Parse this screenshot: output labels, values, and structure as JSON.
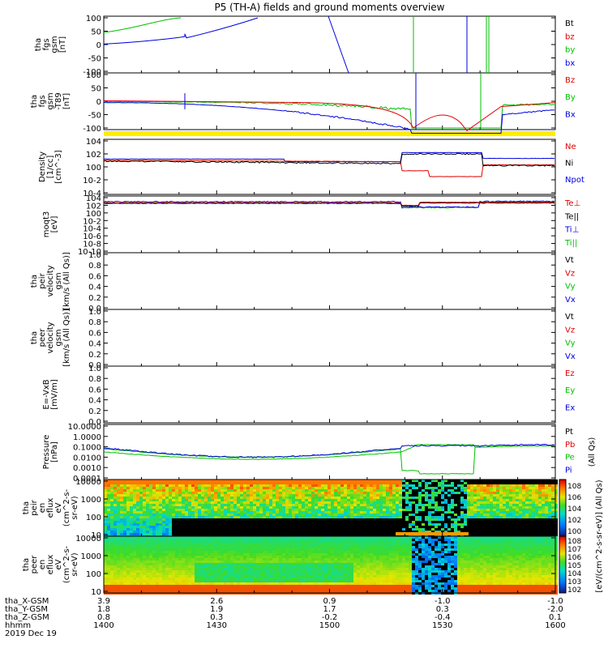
{
  "title": "P5 (TH-A) fields and ground moments overview",
  "panels": [
    {
      "id": "fgs_gsm",
      "ylabel": [
        "tha",
        "fgs",
        "gsm",
        "[nT]"
      ],
      "yticks": [
        "100",
        "50",
        "0",
        "-50",
        "-100"
      ],
      "legend": [
        {
          "text": "Bt",
          "color": "#000000"
        },
        {
          "text": "bz",
          "color": "#e00000"
        },
        {
          "text": "by",
          "color": "#00c000"
        },
        {
          "text": "bx",
          "color": "#0000e0"
        }
      ]
    },
    {
      "id": "fgs_gsm_t89",
      "ylabel": [
        "tha",
        "fgs",
        "gsm",
        "-T89",
        "[nT]"
      ],
      "yticks": [
        "100",
        "50",
        "0",
        "-50",
        "-100"
      ],
      "legend": [
        {
          "text": "Bz",
          "color": "#e00000"
        },
        {
          "text": "By",
          "color": "#00c000"
        },
        {
          "text": "Bx",
          "color": "#0000e0"
        }
      ]
    },
    {
      "id": "density",
      "ylabel": [
        "Density",
        "[1/cc]",
        "[cm^-3]"
      ],
      "yticks": [
        "10^4",
        "10^2",
        "10^0",
        "10^-2",
        "10^-4"
      ],
      "legend": [
        {
          "text": "Ne",
          "color": "#e00000"
        },
        {
          "text": "Ni",
          "color": "#000000"
        },
        {
          "text": "Npot",
          "color": "#0000e0"
        }
      ]
    },
    {
      "id": "temperature",
      "ylabel": [
        "moqt3",
        "[eV]"
      ],
      "yticks": [
        "10^4",
        "10^2",
        "10^0",
        "10^-2",
        "10^-4",
        "10^-6",
        "10^-8",
        "10^-10"
      ],
      "legend": [
        {
          "text": "Te⊥",
          "color": "#e00000"
        },
        {
          "text": "Te||",
          "color": "#000000"
        },
        {
          "text": "Ti⊥",
          "color": "#0000e0"
        },
        {
          "text": "Ti||",
          "color": "#00c000"
        }
      ]
    },
    {
      "id": "peir_velocity",
      "ylabel": [
        "tha",
        "peir",
        "velocity",
        "gsm",
        "[km/s (All Qs)]"
      ],
      "yticks": [
        "1.0",
        "0.8",
        "0.6",
        "0.4",
        "0.2",
        "0.0"
      ],
      "legend": [
        {
          "text": "Vt",
          "color": "#000000"
        },
        {
          "text": "Vz",
          "color": "#e00000"
        },
        {
          "text": "Vy",
          "color": "#00c000"
        },
        {
          "text": "Vx",
          "color": "#0000e0"
        }
      ]
    },
    {
      "id": "peer_velocity",
      "ylabel": [
        "tha",
        "peer",
        "velocity",
        "gsm",
        "[km/s (All Qs)]"
      ],
      "yticks": [
        "1.0",
        "0.8",
        "0.6",
        "0.4",
        "0.2",
        "0.0"
      ],
      "legend": [
        {
          "text": "Vt",
          "color": "#000000"
        },
        {
          "text": "Vz",
          "color": "#e00000"
        },
        {
          "text": "Vy",
          "color": "#00c000"
        },
        {
          "text": "Vx",
          "color": "#0000e0"
        }
      ]
    },
    {
      "id": "efield",
      "ylabel": [
        "E=-VxB",
        "[mV/m]"
      ],
      "yticks": [
        "1.0",
        "0.8",
        "0.6",
        "0.4",
        "0.2",
        "0.0"
      ],
      "legend": [
        {
          "text": "Ez",
          "color": "#e00000"
        },
        {
          "text": "Ey",
          "color": "#00c000"
        },
        {
          "text": "Ex",
          "color": "#0000e0"
        }
      ]
    },
    {
      "id": "pressure",
      "ylabel": [
        "Pressure",
        "[nPa]"
      ],
      "yticks": [
        "10.0000",
        "1.0000",
        "0.1000",
        "0.0100",
        "0.0010",
        "0.0001"
      ],
      "legend": [
        {
          "text": "Pt",
          "color": "#000000"
        },
        {
          "text": "Pb",
          "color": "#e00000"
        },
        {
          "text": "Pe",
          "color": "#00c000"
        },
        {
          "text": "Pi",
          "color": "#0000e0"
        }
      ],
      "extra_label": "(All Qs)"
    },
    {
      "id": "peir_spec",
      "ylabel": [
        "tha",
        "peir",
        "en",
        "eflux",
        "eV",
        "(cm^2-s-",
        "sr-eV)"
      ],
      "yticks": [
        "10000",
        "1000",
        "100",
        "10"
      ]
    },
    {
      "id": "peer_spec",
      "ylabel": [
        "tha",
        "peer",
        "en",
        "eflux",
        "eV",
        "(cm^2-s-",
        "sr-eV)"
      ],
      "yticks": [
        "10000",
        "1000",
        "100",
        "10"
      ]
    }
  ],
  "colorbar": {
    "label": "[eV/(cm^2-s-sr-eV)] (All Qs)",
    "peir_ticks": [
      "10^8",
      "10^6",
      "10^4",
      "10^2",
      "10^0"
    ],
    "peer_ticks": [
      "10^8",
      "10^7",
      "10^6",
      "10^5",
      "10^4",
      "10^3",
      "10^2"
    ]
  },
  "xaxis": {
    "rows": [
      {
        "label": "tha_X-GSM",
        "values": [
          "3.9",
          "2.6",
          "0.9",
          "-1.0",
          "-1.0"
        ]
      },
      {
        "label": "tha_Y-GSM",
        "values": [
          "1.8",
          "1.9",
          "1.7",
          "0.3",
          "-2.0"
        ]
      },
      {
        "label": "tha_Z-GSM",
        "values": [
          "0.8",
          "0.3",
          "-0.2",
          "-0.4",
          "0.1"
        ]
      },
      {
        "label": "hhmm",
        "values": [
          "1400",
          "1430",
          "1500",
          "1530",
          "1600"
        ]
      }
    ],
    "date": "2019 Dec 19"
  },
  "chart_data": {
    "type": "line",
    "title": "P5 (TH-A) fields and ground moments overview",
    "x": [
      "1400",
      "1430",
      "1500",
      "1530",
      "1600"
    ],
    "series": [
      {
        "name": "bx",
        "values": [
          0,
          30,
          100,
          -100,
          -40
        ]
      },
      {
        "name": "by",
        "values": [
          50,
          100,
          100,
          100,
          100
        ]
      },
      {
        "name": "Bx (-T89)",
        "values": [
          -5,
          -40,
          -90,
          -120,
          -40
        ]
      },
      {
        "name": "By (-T89)",
        "values": [
          0,
          -10,
          -40,
          -100,
          -20
        ]
      },
      {
        "name": "Bz (-T89)",
        "values": [
          0,
          -5,
          -20,
          -100,
          -10
        ]
      },
      {
        "name": "Ne",
        "values": [
          10,
          8,
          3,
          0.01,
          1
        ]
      },
      {
        "name": "Ni",
        "values": [
          10,
          8,
          3,
          100,
          1
        ]
      },
      {
        "name": "Pi",
        "values": [
          0.1,
          0.01,
          0.006,
          0.15,
          0.1
        ]
      },
      {
        "name": "Pe",
        "values": [
          0.03,
          0.01,
          0.006,
          0.0002,
          0.1
        ]
      }
    ]
  }
}
